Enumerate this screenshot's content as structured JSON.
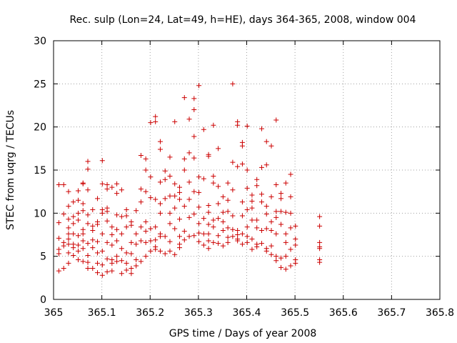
{
  "chart_data": {
    "type": "scatter",
    "title": "Rec. sulp (Lon=24, Lat=49, h=HE), days 364-365, 2008, window 004",
    "xlabel": "GPS time / Days of year 2008",
    "ylabel": "STEC from uqrg / TECUs",
    "xlim": [
      365,
      365.8
    ],
    "ylim": [
      0,
      30
    ],
    "xticks": [
      "365",
      "365.1",
      "365.2",
      "365.3",
      "365.4",
      "365.5",
      "365.6",
      "365.7",
      "365.8"
    ],
    "xtick_values": [
      365,
      365.1,
      365.2,
      365.3,
      365.4,
      365.5,
      365.6,
      365.7,
      365.8
    ],
    "yticks": [
      "0",
      "5",
      "10",
      "15",
      "20",
      "25",
      "30"
    ],
    "ytick_values": [
      0,
      5,
      10,
      15,
      20,
      25,
      30
    ],
    "grid": true,
    "marker": "plus",
    "color": "#cc0000",
    "points": [
      [
        365.011,
        13.3
      ],
      [
        365.011,
        8.9
      ],
      [
        365.011,
        7.1
      ],
      [
        365.011,
        5.8
      ],
      [
        365.011,
        5.3
      ],
      [
        365.011,
        3.3
      ],
      [
        365.021,
        13.3
      ],
      [
        365.021,
        9.9
      ],
      [
        365.021,
        6.6
      ],
      [
        365.021,
        6.2
      ],
      [
        365.021,
        3.6
      ],
      [
        365.031,
        12.5
      ],
      [
        365.031,
        10.8
      ],
      [
        365.031,
        9.3
      ],
      [
        365.031,
        8.3
      ],
      [
        365.031,
        7.6
      ],
      [
        365.031,
        7.0
      ],
      [
        365.031,
        6.4
      ],
      [
        365.031,
        5.4
      ],
      [
        365.031,
        4.2
      ],
      [
        365.041,
        11.3
      ],
      [
        365.041,
        9.6
      ],
      [
        365.041,
        8.8
      ],
      [
        365.041,
        7.6
      ],
      [
        365.041,
        6.4
      ],
      [
        365.041,
        6.0
      ],
      [
        365.041,
        5.1
      ],
      [
        365.051,
        12.6
      ],
      [
        365.051,
        11.5
      ],
      [
        365.051,
        10.0
      ],
      [
        365.051,
        9.2
      ],
      [
        365.051,
        7.4
      ],
      [
        365.051,
        6.3
      ],
      [
        365.051,
        5.6
      ],
      [
        365.051,
        4.6
      ],
      [
        365.061,
        13.5
      ],
      [
        365.061,
        13.4
      ],
      [
        365.061,
        11.1
      ],
      [
        365.061,
        10.3
      ],
      [
        365.061,
        8.1
      ],
      [
        365.061,
        7.6
      ],
      [
        365.061,
        6.8
      ],
      [
        365.061,
        5.9
      ],
      [
        365.061,
        4.4
      ],
      [
        365.071,
        16.0
      ],
      [
        365.071,
        15.1
      ],
      [
        365.071,
        12.7
      ],
      [
        365.071,
        9.8
      ],
      [
        365.071,
        8.8
      ],
      [
        365.071,
        6.5
      ],
      [
        365.071,
        5.1
      ],
      [
        365.071,
        4.3
      ],
      [
        365.071,
        3.6
      ],
      [
        365.081,
        10.4
      ],
      [
        365.081,
        8.5
      ],
      [
        365.081,
        8.0
      ],
      [
        365.081,
        6.9
      ],
      [
        365.081,
        6.0
      ],
      [
        365.081,
        3.6
      ],
      [
        365.091,
        11.7
      ],
      [
        365.091,
        9.0
      ],
      [
        365.091,
        8.7
      ],
      [
        365.091,
        6.7
      ],
      [
        365.091,
        5.4
      ],
      [
        365.091,
        4.2
      ],
      [
        365.091,
        3.1
      ],
      [
        365.101,
        16.1
      ],
      [
        365.101,
        13.4
      ],
      [
        365.101,
        10.4
      ],
      [
        365.101,
        10.0
      ],
      [
        365.101,
        7.6
      ],
      [
        365.101,
        5.6
      ],
      [
        365.101,
        4.0
      ],
      [
        365.101,
        2.8
      ],
      [
        365.111,
        13.3
      ],
      [
        365.111,
        12.8
      ],
      [
        365.111,
        10.6
      ],
      [
        365.111,
        10.2
      ],
      [
        365.111,
        9.1
      ],
      [
        365.111,
        6.6
      ],
      [
        365.111,
        4.7
      ],
      [
        365.111,
        3.2
      ],
      [
        365.121,
        13.0
      ],
      [
        365.121,
        8.4
      ],
      [
        365.121,
        7.5
      ],
      [
        365.121,
        6.3
      ],
      [
        365.121,
        4.6
      ],
      [
        365.121,
        4.2
      ],
      [
        365.121,
        3.3
      ],
      [
        365.131,
        13.4
      ],
      [
        365.131,
        12.3
      ],
      [
        365.131,
        9.8
      ],
      [
        365.131,
        8.1
      ],
      [
        365.131,
        6.8
      ],
      [
        365.131,
        5.0
      ],
      [
        365.131,
        4.4
      ],
      [
        365.141,
        12.7
      ],
      [
        365.141,
        9.6
      ],
      [
        365.141,
        7.6
      ],
      [
        365.141,
        5.9
      ],
      [
        365.141,
        4.5
      ],
      [
        365.141,
        3.0
      ],
      [
        365.151,
        10.4
      ],
      [
        365.151,
        9.7
      ],
      [
        365.151,
        8.4
      ],
      [
        365.151,
        5.4
      ],
      [
        365.151,
        4.2
      ],
      [
        365.151,
        3.4
      ],
      [
        365.161,
        9.0
      ],
      [
        365.161,
        8.6
      ],
      [
        365.161,
        6.6
      ],
      [
        365.161,
        5.3
      ],
      [
        365.161,
        3.6
      ],
      [
        365.161,
        3.0
      ],
      [
        365.171,
        10.3
      ],
      [
        365.171,
        7.6
      ],
      [
        365.171,
        6.4
      ],
      [
        365.171,
        4.6
      ],
      [
        365.171,
        3.9
      ],
      [
        365.181,
        16.7
      ],
      [
        365.181,
        12.8
      ],
      [
        365.181,
        11.3
      ],
      [
        365.181,
        8.4
      ],
      [
        365.181,
        6.8
      ],
      [
        365.181,
        4.4
      ],
      [
        365.191,
        16.3
      ],
      [
        365.191,
        15.0
      ],
      [
        365.191,
        12.5
      ],
      [
        365.191,
        9.0
      ],
      [
        365.191,
        7.9
      ],
      [
        365.191,
        6.6
      ],
      [
        365.191,
        5.0
      ],
      [
        365.201,
        20.5
      ],
      [
        365.201,
        14.2
      ],
      [
        365.201,
        11.8
      ],
      [
        365.201,
        8.2
      ],
      [
        365.201,
        6.8
      ],
      [
        365.201,
        5.6
      ],
      [
        365.211,
        21.2
      ],
      [
        365.211,
        20.6
      ],
      [
        365.211,
        11.6
      ],
      [
        365.211,
        8.4
      ],
      [
        365.211,
        6.9
      ],
      [
        365.211,
        6.1
      ],
      [
        365.211,
        5.8
      ],
      [
        365.221,
        18.3
      ],
      [
        365.221,
        17.4
      ],
      [
        365.221,
        13.6
      ],
      [
        365.221,
        11.1
      ],
      [
        365.221,
        10.0
      ],
      [
        365.221,
        7.6
      ],
      [
        365.221,
        7.3
      ],
      [
        365.221,
        5.6
      ],
      [
        365.231,
        14.9
      ],
      [
        365.231,
        13.9
      ],
      [
        365.231,
        11.7
      ],
      [
        365.231,
        7.3
      ],
      [
        365.231,
        5.3
      ],
      [
        365.241,
        16.5
      ],
      [
        365.241,
        14.3
      ],
      [
        365.241,
        12.0
      ],
      [
        365.241,
        10.0
      ],
      [
        365.241,
        8.8
      ],
      [
        365.241,
        6.7
      ],
      [
        365.241,
        5.6
      ],
      [
        365.251,
        20.6
      ],
      [
        365.251,
        13.4
      ],
      [
        365.251,
        12.0
      ],
      [
        365.251,
        10.6
      ],
      [
        365.251,
        8.2
      ],
      [
        365.251,
        5.2
      ],
      [
        365.261,
        13.0
      ],
      [
        365.261,
        12.4
      ],
      [
        365.261,
        11.6
      ],
      [
        365.261,
        9.3
      ],
      [
        365.261,
        7.3
      ],
      [
        365.261,
        6.4
      ],
      [
        365.261,
        6.0
      ],
      [
        365.271,
        23.4
      ],
      [
        365.271,
        16.3
      ],
      [
        365.271,
        15.0
      ],
      [
        365.271,
        10.8
      ],
      [
        365.271,
        7.9
      ],
      [
        365.271,
        6.9
      ],
      [
        365.281,
        20.9
      ],
      [
        365.281,
        17.0
      ],
      [
        365.281,
        13.6
      ],
      [
        365.281,
        11.6
      ],
      [
        365.281,
        9.5
      ],
      [
        365.281,
        7.3
      ],
      [
        365.291,
        23.3
      ],
      [
        365.291,
        22.0
      ],
      [
        365.291,
        18.9
      ],
      [
        365.291,
        16.4
      ],
      [
        365.291,
        12.5
      ],
      [
        365.291,
        9.9
      ],
      [
        365.291,
        7.4
      ],
      [
        365.301,
        24.8
      ],
      [
        365.301,
        14.2
      ],
      [
        365.301,
        12.4
      ],
      [
        365.301,
        10.7
      ],
      [
        365.301,
        8.8
      ],
      [
        365.301,
        7.7
      ],
      [
        365.301,
        6.7
      ],
      [
        365.311,
        19.7
      ],
      [
        365.311,
        14.0
      ],
      [
        365.311,
        9.4
      ],
      [
        365.311,
        7.6
      ],
      [
        365.311,
        6.3
      ],
      [
        365.321,
        16.8
      ],
      [
        365.321,
        16.6
      ],
      [
        365.321,
        10.9
      ],
      [
        365.321,
        10.1
      ],
      [
        365.321,
        8.7
      ],
      [
        365.321,
        7.6
      ],
      [
        365.321,
        6.8
      ],
      [
        365.321,
        5.9
      ],
      [
        365.331,
        20.2
      ],
      [
        365.331,
        14.3
      ],
      [
        365.331,
        13.5
      ],
      [
        365.331,
        9.2
      ],
      [
        365.331,
        8.4
      ],
      [
        365.331,
        6.6
      ],
      [
        365.341,
        17.5
      ],
      [
        365.341,
        13.1
      ],
      [
        365.341,
        11.1
      ],
      [
        365.341,
        9.4
      ],
      [
        365.341,
        7.4
      ],
      [
        365.341,
        6.5
      ],
      [
        365.351,
        11.9
      ],
      [
        365.351,
        10.1
      ],
      [
        365.351,
        9.0
      ],
      [
        365.351,
        8.0
      ],
      [
        365.351,
        6.2
      ],
      [
        365.361,
        13.5
      ],
      [
        365.361,
        11.5
      ],
      [
        365.361,
        10.2
      ],
      [
        365.361,
        8.3
      ],
      [
        365.361,
        7.2
      ],
      [
        365.361,
        6.6
      ],
      [
        365.371,
        25.0
      ],
      [
        365.371,
        15.9
      ],
      [
        365.371,
        12.7
      ],
      [
        365.371,
        9.7
      ],
      [
        365.371,
        8.1
      ],
      [
        365.371,
        7.3
      ],
      [
        365.381,
        20.6
      ],
      [
        365.381,
        20.2
      ],
      [
        365.381,
        15.4
      ],
      [
        365.381,
        8.0
      ],
      [
        365.381,
        7.5
      ],
      [
        365.381,
        7.0
      ],
      [
        365.381,
        6.8
      ],
      [
        365.391,
        18.2
      ],
      [
        365.391,
        17.8
      ],
      [
        365.391,
        15.7
      ],
      [
        365.391,
        11.3
      ],
      [
        365.391,
        9.7
      ],
      [
        365.391,
        7.6
      ],
      [
        365.391,
        6.4
      ],
      [
        365.401,
        20.1
      ],
      [
        365.401,
        15.0
      ],
      [
        365.401,
        12.9
      ],
      [
        365.401,
        10.4
      ],
      [
        365.401,
        8.4
      ],
      [
        365.401,
        7.3
      ],
      [
        365.401,
        6.6
      ],
      [
        365.411,
        12.1
      ],
      [
        365.411,
        11.4
      ],
      [
        365.411,
        10.6
      ],
      [
        365.411,
        9.2
      ],
      [
        365.411,
        7.0
      ],
      [
        365.411,
        5.8
      ],
      [
        365.421,
        13.9
      ],
      [
        365.421,
        13.2
      ],
      [
        365.421,
        9.2
      ],
      [
        365.421,
        8.3
      ],
      [
        365.421,
        6.4
      ],
      [
        365.421,
        6.1
      ],
      [
        365.431,
        19.8
      ],
      [
        365.431,
        15.3
      ],
      [
        365.431,
        12.2
      ],
      [
        365.431,
        11.3
      ],
      [
        365.431,
        8.0
      ],
      [
        365.431,
        6.5
      ],
      [
        365.441,
        18.3
      ],
      [
        365.441,
        15.6
      ],
      [
        365.441,
        10.8
      ],
      [
        365.441,
        9.9
      ],
      [
        365.441,
        8.2
      ],
      [
        365.441,
        5.9
      ],
      [
        365.441,
        5.6
      ],
      [
        365.451,
        17.8
      ],
      [
        365.451,
        11.9
      ],
      [
        365.451,
        9.0
      ],
      [
        365.451,
        8.0
      ],
      [
        365.451,
        6.2
      ],
      [
        365.451,
        5.2
      ],
      [
        365.461,
        20.8
      ],
      [
        365.461,
        13.3
      ],
      [
        365.461,
        10.2
      ],
      [
        365.461,
        9.5
      ],
      [
        365.461,
        7.6
      ],
      [
        365.461,
        5.0
      ],
      [
        365.461,
        4.5
      ],
      [
        365.471,
        12.3
      ],
      [
        365.471,
        11.7
      ],
      [
        365.471,
        10.2
      ],
      [
        365.471,
        8.7
      ],
      [
        365.471,
        4.8
      ],
      [
        365.471,
        3.7
      ],
      [
        365.481,
        13.5
      ],
      [
        365.481,
        10.1
      ],
      [
        365.481,
        7.6
      ],
      [
        365.481,
        6.6
      ],
      [
        365.481,
        5.0
      ],
      [
        365.481,
        3.5
      ],
      [
        365.491,
        14.5
      ],
      [
        365.491,
        11.9
      ],
      [
        365.491,
        10.0
      ],
      [
        365.491,
        8.3
      ],
      [
        365.491,
        5.8
      ],
      [
        365.491,
        3.9
      ],
      [
        365.501,
        8.5
      ],
      [
        365.501,
        7.0
      ],
      [
        365.501,
        6.3
      ],
      [
        365.501,
        4.6
      ],
      [
        365.501,
        4.2
      ],
      [
        365.551,
        9.6
      ],
      [
        365.551,
        8.5
      ],
      [
        365.551,
        6.6
      ],
      [
        365.551,
        6.1
      ],
      [
        365.551,
        5.9
      ],
      [
        365.551,
        4.6
      ],
      [
        365.551,
        4.3
      ]
    ]
  }
}
